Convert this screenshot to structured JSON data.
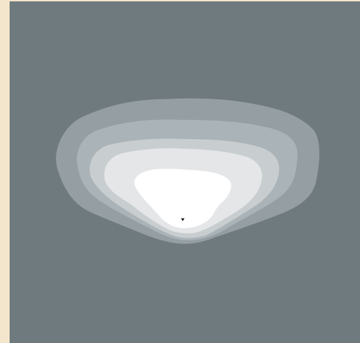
{
  "colors": {
    "left_strip": "#f3e6cc",
    "background": "#6f7a7e",
    "band_1": "#959ea3",
    "band_2": "#aab3b7",
    "band_3": "#c8cdcf",
    "band_4": "#e4e6e8",
    "band_5": "#ffffff",
    "marker": "#111111"
  },
  "image": {
    "description_icon": "contour-plume-icon",
    "marker_icon": "source-marker-icon"
  }
}
